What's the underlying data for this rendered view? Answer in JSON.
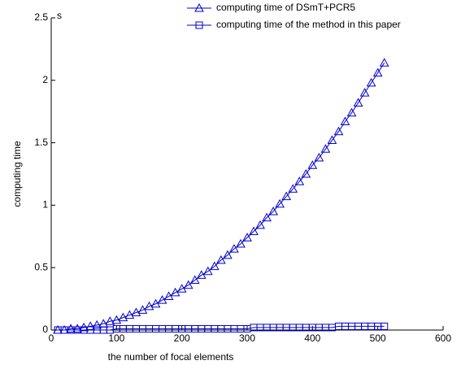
{
  "chart_data": {
    "type": "line",
    "x_label": "the number of focal elements",
    "y_label": "computing time",
    "y_unit_annotation": "s",
    "x": [
      10,
      20,
      30,
      40,
      50,
      60,
      70,
      80,
      90,
      100,
      110,
      120,
      130,
      140,
      150,
      160,
      170,
      180,
      190,
      200,
      210,
      220,
      230,
      240,
      250,
      260,
      270,
      280,
      290,
      300,
      310,
      320,
      330,
      340,
      350,
      360,
      370,
      380,
      390,
      400,
      410,
      420,
      430,
      440,
      450,
      460,
      470,
      480,
      490,
      500,
      510
    ],
    "series": [
      {
        "name": "computing time of DSmT+PCR5",
        "color": "#0000cc",
        "marker": "triangle",
        "values": [
          0.0,
          0.0,
          0.01,
          0.01,
          0.02,
          0.03,
          0.04,
          0.05,
          0.07,
          0.08,
          0.1,
          0.12,
          0.14,
          0.16,
          0.19,
          0.21,
          0.24,
          0.27,
          0.3,
          0.33,
          0.36,
          0.4,
          0.44,
          0.47,
          0.51,
          0.56,
          0.6,
          0.65,
          0.69,
          0.74,
          0.79,
          0.84,
          0.9,
          0.95,
          1.01,
          1.07,
          1.13,
          1.19,
          1.25,
          1.32,
          1.38,
          1.45,
          1.52,
          1.59,
          1.67,
          1.74,
          1.82,
          1.9,
          1.98,
          2.06,
          2.14
        ]
      },
      {
        "name": "computing time of the method in this paper",
        "color": "#0000cc",
        "marker": "square",
        "values": [
          0.0,
          0.0,
          0.0,
          0.0,
          0.0,
          0.0,
          0.0,
          0.0,
          0.0,
          0.01,
          0.01,
          0.01,
          0.01,
          0.01,
          0.01,
          0.01,
          0.01,
          0.01,
          0.01,
          0.01,
          0.01,
          0.01,
          0.01,
          0.01,
          0.01,
          0.01,
          0.01,
          0.01,
          0.01,
          0.01,
          0.02,
          0.02,
          0.02,
          0.02,
          0.02,
          0.02,
          0.02,
          0.02,
          0.02,
          0.02,
          0.02,
          0.02,
          0.02,
          0.03,
          0.03,
          0.03,
          0.03,
          0.03,
          0.03,
          0.03,
          0.03
        ]
      }
    ],
    "xlim": [
      0,
      600
    ],
    "xticks": [
      0,
      100,
      200,
      300,
      400,
      500,
      600
    ],
    "ylim": [
      0,
      2.5
    ],
    "yticks": [
      0,
      0.5,
      1,
      1.5,
      2,
      2.5
    ],
    "grid": false,
    "legend": "top-right"
  }
}
